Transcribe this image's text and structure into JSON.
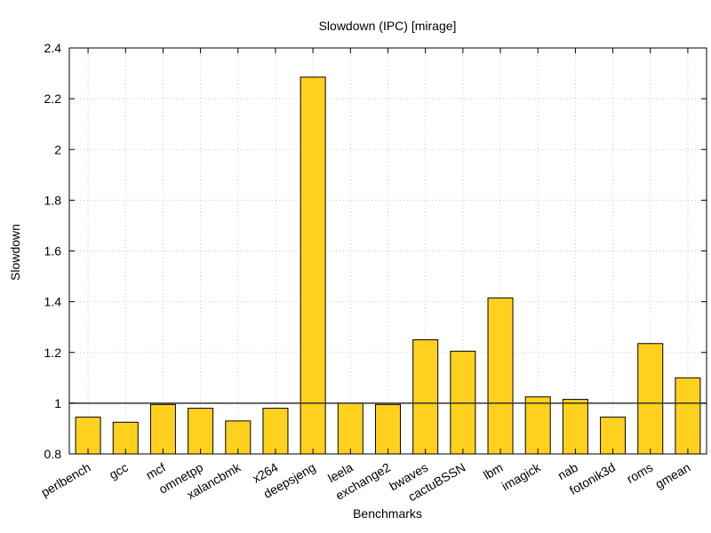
{
  "chart_data": {
    "type": "bar",
    "title": "Slowdown (IPC) [mirage]",
    "xlabel": "Benchmarks",
    "ylabel": "Slowdown",
    "ylim": [
      0.8,
      2.4
    ],
    "yticks": [
      "0.8",
      "1",
      "1.2",
      "1.4",
      "1.6",
      "1.8",
      "2",
      "2.2",
      "2.4"
    ],
    "grid": true,
    "reference_line": 1.0,
    "bar_color": "#ffd11e",
    "categories": [
      "perlbench",
      "gcc",
      "mcf",
      "omnetpp",
      "xalancbmk",
      "x264",
      "deepsjeng",
      "leela",
      "exchange2",
      "bwaves",
      "cactuBSSN",
      "lbm",
      "imagick",
      "nab",
      "fotonik3d",
      "roms",
      "gmean"
    ],
    "values": [
      0.945,
      0.925,
      0.995,
      0.98,
      0.93,
      0.98,
      2.285,
      1.0,
      0.995,
      1.25,
      1.205,
      1.415,
      1.025,
      1.015,
      0.945,
      1.235,
      1.1
    ]
  }
}
